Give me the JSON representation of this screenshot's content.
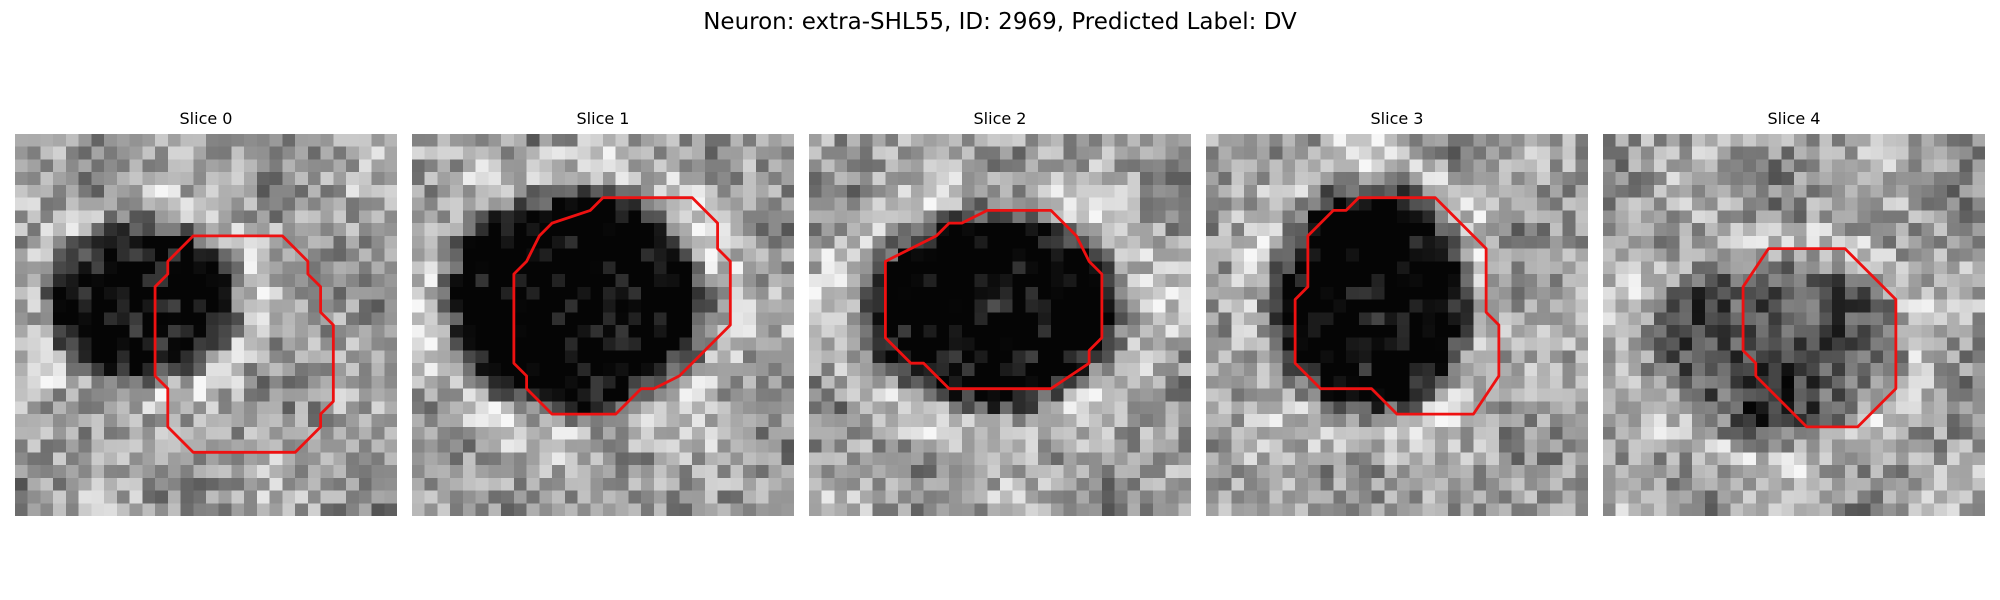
{
  "figure": {
    "title": "Neuron: extra-SHL55, ID: 2969, Predicted Label: DV"
  },
  "panels": [
    {
      "title": "Slice 0",
      "seed": 11,
      "blob_darkness": 0.62,
      "blob_center": [
        0.33,
        0.44
      ],
      "blob_radius": [
        0.22,
        0.19
      ]
    },
    {
      "title": "Slice 1",
      "seed": 23,
      "blob_darkness": 0.78,
      "blob_center": [
        0.42,
        0.44
      ],
      "blob_radius": [
        0.3,
        0.26
      ]
    },
    {
      "title": "Slice 2",
      "seed": 37,
      "blob_darkness": 0.72,
      "blob_center": [
        0.48,
        0.46
      ],
      "blob_radius": [
        0.3,
        0.23
      ]
    },
    {
      "title": "Slice 3",
      "seed": 41,
      "blob_darkness": 0.72,
      "blob_center": [
        0.43,
        0.43
      ],
      "blob_radius": [
        0.23,
        0.27
      ]
    },
    {
      "title": "Slice 4",
      "seed": 53,
      "blob_darkness": 0.35,
      "blob_center": [
        0.45,
        0.56
      ],
      "blob_radius": [
        0.28,
        0.21
      ]
    }
  ],
  "colors": {
    "contour": "#ee1111",
    "background": "#ffffff"
  }
}
